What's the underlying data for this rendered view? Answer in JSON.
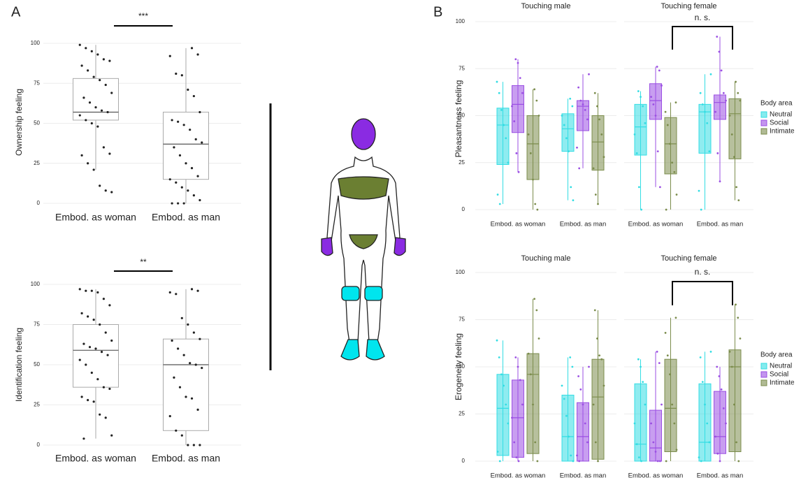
{
  "panel_labels": [
    "A",
    "B"
  ],
  "chart_data": [
    {
      "type": "box",
      "ylabel": "Ownership feeling",
      "categories": [
        "Embod. as woman",
        "Embod. as man"
      ],
      "significance": "***",
      "ylim": [
        -5,
        105
      ],
      "yticks": [
        0,
        25,
        50,
        75,
        100
      ],
      "grid": true,
      "series": [
        {
          "color": "#ffffff",
          "boxes": [
            {
              "whisker_low": 21,
              "q1": 52,
              "median": 57,
              "q3": 78,
              "whisker_high": 99,
              "points": [
                99,
                97,
                95,
                93,
                90,
                89,
                86,
                83,
                79,
                77,
                74,
                69,
                66,
                63,
                60,
                58,
                57,
                55,
                52,
                50,
                48,
                35,
                31,
                30,
                25,
                21,
                11,
                8,
                7
              ]
            },
            {
              "whisker_low": 0,
              "q1": 15,
              "median": 37,
              "q3": 57,
              "whisker_high": 97,
              "points": [
                97,
                93,
                92,
                81,
                80,
                71,
                67,
                57,
                52,
                51,
                49,
                46,
                40,
                38,
                35,
                30,
                25,
                22,
                17,
                15,
                13,
                10,
                8,
                5,
                2,
                0,
                0,
                0
              ]
            }
          ]
        }
      ]
    },
    {
      "type": "box",
      "ylabel": "Identification feeling",
      "categories": [
        "Embod. as woman",
        "Embod. as man"
      ],
      "significance": "**",
      "ylim": [
        -5,
        105
      ],
      "yticks": [
        0,
        25,
        50,
        75,
        100
      ],
      "grid": true,
      "series": [
        {
          "color": "#ffffff",
          "boxes": [
            {
              "whisker_low": 4,
              "q1": 36,
              "median": 59,
              "q3": 75,
              "whisker_high": 97,
              "points": [
                97,
                96,
                96,
                95,
                91,
                87,
                82,
                80,
                78,
                75,
                70,
                65,
                63,
                61,
                60,
                58,
                56,
                53,
                50,
                45,
                41,
                36,
                35,
                30,
                28,
                27,
                19,
                17,
                6,
                4
              ]
            },
            {
              "whisker_low": 0,
              "q1": 9,
              "median": 50,
              "q3": 66,
              "whisker_high": 97,
              "points": [
                97,
                96,
                95,
                94,
                79,
                75,
                70,
                66,
                65,
                60,
                56,
                51,
                50,
                48,
                42,
                36,
                30,
                29,
                22,
                18,
                9,
                6,
                0,
                0,
                0
              ]
            }
          ]
        }
      ]
    },
    {
      "type": "box",
      "ylabel": "Pleasantness feeling",
      "facets": [
        "Touching male",
        "Touching female"
      ],
      "categories": [
        "Embod. as woman",
        "Embod. as man"
      ],
      "significance": "n. s.",
      "legend_title": "Body area",
      "ylim": [
        -5,
        105
      ],
      "yticks": [
        0,
        25,
        50,
        75,
        100
      ],
      "grid": true,
      "series": [
        {
          "name": "Neutral",
          "color": "#33dde3",
          "boxes": [
            {
              "whisker_low": 3,
              "q1": 24,
              "median": 45,
              "q3": 54,
              "whisker_high": 68,
              "points": [
                68,
                62,
                53,
                45,
                38,
                25,
                8,
                3
              ]
            },
            {
              "whisker_low": 5,
              "q1": 31,
              "median": 43,
              "q3": 51,
              "whisker_high": 59,
              "points": [
                59,
                55,
                50,
                45,
                38,
                31,
                12,
                5
              ]
            },
            {
              "whisker_low": 0,
              "q1": 29,
              "median": 44,
              "q3": 56,
              "whisker_high": 63,
              "points": [
                63,
                60,
                55,
                46,
                40,
                30,
                12,
                0
              ]
            },
            {
              "whisker_low": 0,
              "q1": 30,
              "median": 52,
              "q3": 56,
              "whisker_high": 72,
              "points": [
                72,
                62,
                56,
                52,
                46,
                31,
                10,
                0
              ]
            }
          ]
        },
        {
          "name": "Social",
          "color": "#9b4fe3",
          "boxes": [
            {
              "whisker_low": 20,
              "q1": 41,
              "median": 56,
              "q3": 66,
              "whisker_high": 80,
              "points": [
                80,
                78,
                70,
                62,
                55,
                47,
                30,
                20
              ]
            },
            {
              "whisker_low": 22,
              "q1": 42,
              "median": 55,
              "q3": 58,
              "whisker_high": 72,
              "points": [
                72,
                65,
                58,
                56,
                53,
                48,
                33,
                22
              ]
            },
            {
              "whisker_low": 12,
              "q1": 48,
              "median": 58,
              "q3": 67,
              "whisker_high": 76,
              "points": [
                76,
                74,
                66,
                60,
                56,
                50,
                31,
                12
              ]
            },
            {
              "whisker_low": 15,
              "q1": 48,
              "median": 57,
              "q3": 61,
              "whisker_high": 92,
              "points": [
                92,
                84,
                74,
                62,
                58,
                52,
                30,
                15
              ]
            }
          ]
        },
        {
          "name": "Intimate",
          "color": "#7b8c4c",
          "boxes": [
            {
              "whisker_low": 0,
              "q1": 16,
              "median": 35,
              "q3": 50,
              "whisker_high": 64,
              "points": [
                64,
                58,
                50,
                40,
                30,
                16,
                3,
                0
              ]
            },
            {
              "whisker_low": 3,
              "q1": 21,
              "median": 36,
              "q3": 50,
              "whisker_high": 62,
              "points": [
                62,
                55,
                48,
                40,
                28,
                22,
                8,
                3
              ]
            },
            {
              "whisker_low": 0,
              "q1": 19,
              "median": 35,
              "q3": 49,
              "whisker_high": 57,
              "points": [
                57,
                52,
                45,
                35,
                25,
                20,
                8,
                0
              ]
            },
            {
              "whisker_low": 5,
              "q1": 27,
              "median": 51,
              "q3": 59,
              "whisker_high": 68,
              "points": [
                68,
                62,
                58,
                50,
                40,
                28,
                12,
                5
              ]
            }
          ]
        }
      ]
    },
    {
      "type": "box",
      "ylabel": "Erogeneity feeling",
      "facets": [
        "Touching male",
        "Touching female"
      ],
      "categories": [
        "Embod. as woman",
        "Embod. as man"
      ],
      "significance": "n. s.",
      "legend_title": "Body area",
      "ylim": [
        -5,
        105
      ],
      "yticks": [
        0,
        25,
        50,
        75,
        100
      ],
      "grid": true,
      "series": [
        {
          "name": "Neutral",
          "color": "#33dde3",
          "boxes": [
            {
              "whisker_low": 0,
              "q1": 3,
              "median": 28,
              "q3": 46,
              "whisker_high": 64,
              "points": [
                64,
                55,
                46,
                40,
                30,
                20,
                5,
                0
              ]
            },
            {
              "whisker_low": 0,
              "q1": 0,
              "median": 13,
              "q3": 35,
              "whisker_high": 55,
              "points": [
                55,
                50,
                40,
                33,
                24,
                13,
                3,
                0
              ]
            },
            {
              "whisker_low": 0,
              "q1": 0,
              "median": 9,
              "q3": 41,
              "whisker_high": 54,
              "points": [
                54,
                50,
                42,
                30,
                20,
                9,
                2,
                0
              ]
            },
            {
              "whisker_low": 0,
              "q1": 0,
              "median": 10,
              "q3": 41,
              "whisker_high": 58,
              "points": [
                58,
                55,
                42,
                30,
                20,
                10,
                2,
                0
              ]
            }
          ]
        },
        {
          "name": "Social",
          "color": "#9b4fe3",
          "boxes": [
            {
              "whisker_low": 0,
              "q1": 2,
              "median": 23,
              "q3": 43,
              "whisker_high": 55,
              "points": [
                55,
                50,
                43,
                30,
                23,
                10,
                2,
                0
              ]
            },
            {
              "whisker_low": 0,
              "q1": 0,
              "median": 13,
              "q3": 31,
              "whisker_high": 50,
              "points": [
                50,
                45,
                38,
                30,
                20,
                10,
                3,
                0
              ]
            },
            {
              "whisker_low": 0,
              "q1": 0,
              "median": 7,
              "q3": 27,
              "whisker_high": 58,
              "points": [
                58,
                52,
                30,
                20,
                10,
                5,
                0,
                0
              ]
            },
            {
              "whisker_low": 0,
              "q1": 4,
              "median": 13,
              "q3": 37,
              "whisker_high": 50,
              "points": [
                50,
                45,
                38,
                28,
                20,
                13,
                4,
                0
              ]
            }
          ]
        },
        {
          "name": "Intimate",
          "color": "#7b8c4c",
          "boxes": [
            {
              "whisker_low": 0,
              "q1": 4,
              "median": 46,
              "q3": 57,
              "whisker_high": 86,
              "points": [
                86,
                80,
                65,
                57,
                46,
                30,
                10,
                0
              ]
            },
            {
              "whisker_low": 0,
              "q1": 1,
              "median": 34,
              "q3": 54,
              "whisker_high": 80,
              "points": [
                80,
                65,
                56,
                54,
                40,
                30,
                10,
                0
              ]
            },
            {
              "whisker_low": 0,
              "q1": 5,
              "median": 28,
              "q3": 54,
              "whisker_high": 76,
              "points": [
                76,
                68,
                56,
                46,
                30,
                20,
                6,
                0
              ]
            },
            {
              "whisker_low": 0,
              "q1": 5,
              "median": 50,
              "q3": 59,
              "whisker_high": 83,
              "points": [
                83,
                76,
                65,
                58,
                50,
                30,
                10,
                0
              ]
            }
          ]
        }
      ]
    }
  ]
}
